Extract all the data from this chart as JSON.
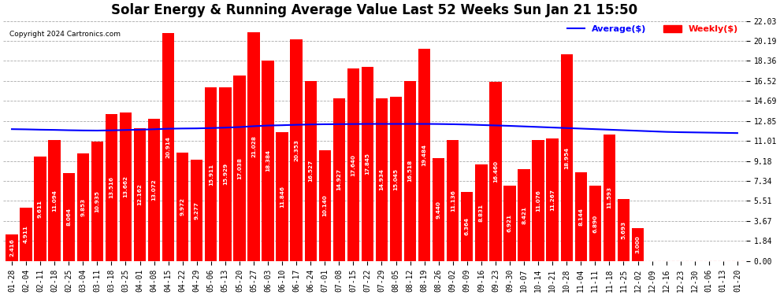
{
  "title": "Solar Energy & Running Average Value Last 52 Weeks Sun Jan 21 15:50",
  "copyright": "Copyright 2024 Cartronics.com",
  "legend_avg": "Average($)",
  "legend_weekly": "Weekly($)",
  "categories": [
    "01-28",
    "02-04",
    "02-11",
    "02-18",
    "02-25",
    "03-04",
    "03-11",
    "03-18",
    "03-25",
    "04-01",
    "04-08",
    "04-15",
    "04-22",
    "04-29",
    "05-06",
    "05-13",
    "05-20",
    "05-27",
    "06-03",
    "06-10",
    "06-17",
    "06-24",
    "07-01",
    "07-08",
    "07-15",
    "07-22",
    "07-29",
    "08-05",
    "08-12",
    "08-19",
    "08-26",
    "09-02",
    "09-09",
    "09-16",
    "09-23",
    "09-30",
    "10-07",
    "10-14",
    "10-21",
    "10-28",
    "11-04",
    "11-11",
    "11-18",
    "11-25",
    "12-02",
    "12-09",
    "12-16",
    "12-23",
    "12-30",
    "01-06",
    "01-13",
    "01-20"
  ],
  "bar_values": [
    2.416,
    4.911,
    9.611,
    11.094,
    8.064,
    9.853,
    10.935,
    13.516,
    13.662,
    12.162,
    13.072,
    20.914,
    9.972,
    9.277,
    15.911,
    15.929,
    17.038,
    21.028,
    18.384,
    11.846,
    20.353,
    16.527,
    10.14,
    14.927,
    17.64,
    17.845,
    14.934,
    15.045,
    16.518,
    19.484,
    9.44,
    11.136,
    6.364,
    8.831,
    16.46,
    6.921,
    8.421,
    11.076,
    11.267,
    18.954,
    8.144,
    6.89,
    11.593,
    5.693,
    3.0,
    0.0,
    0.0,
    0.0,
    0.0,
    0.0,
    0.0,
    0.0
  ],
  "avg_values": [
    12.1,
    12.08,
    12.05,
    12.03,
    12.0,
    11.98,
    11.97,
    11.99,
    12.02,
    12.05,
    12.09,
    12.14,
    12.16,
    12.17,
    12.2,
    12.24,
    12.29,
    12.37,
    12.43,
    12.46,
    12.5,
    12.53,
    12.55,
    12.56,
    12.57,
    12.58,
    12.58,
    12.58,
    12.58,
    12.58,
    12.57,
    12.55,
    12.52,
    12.48,
    12.44,
    12.4,
    12.35,
    12.3,
    12.25,
    12.2,
    12.15,
    12.1,
    12.05,
    12.0,
    11.95,
    11.9,
    11.85,
    11.82,
    11.8,
    11.78,
    11.76,
    11.74
  ],
  "yticks": [
    0.0,
    1.84,
    3.67,
    5.51,
    7.34,
    9.18,
    11.01,
    12.85,
    14.69,
    16.52,
    18.36,
    20.19,
    22.03
  ],
  "bar_color": "#ff0000",
  "avg_line_color": "#0000ff",
  "background_color": "#ffffff",
  "grid_color": "#aaaaaa",
  "title_fontsize": 12,
  "tick_fontsize": 7.0,
  "ymax": 22.03,
  "ymin": 0.0
}
